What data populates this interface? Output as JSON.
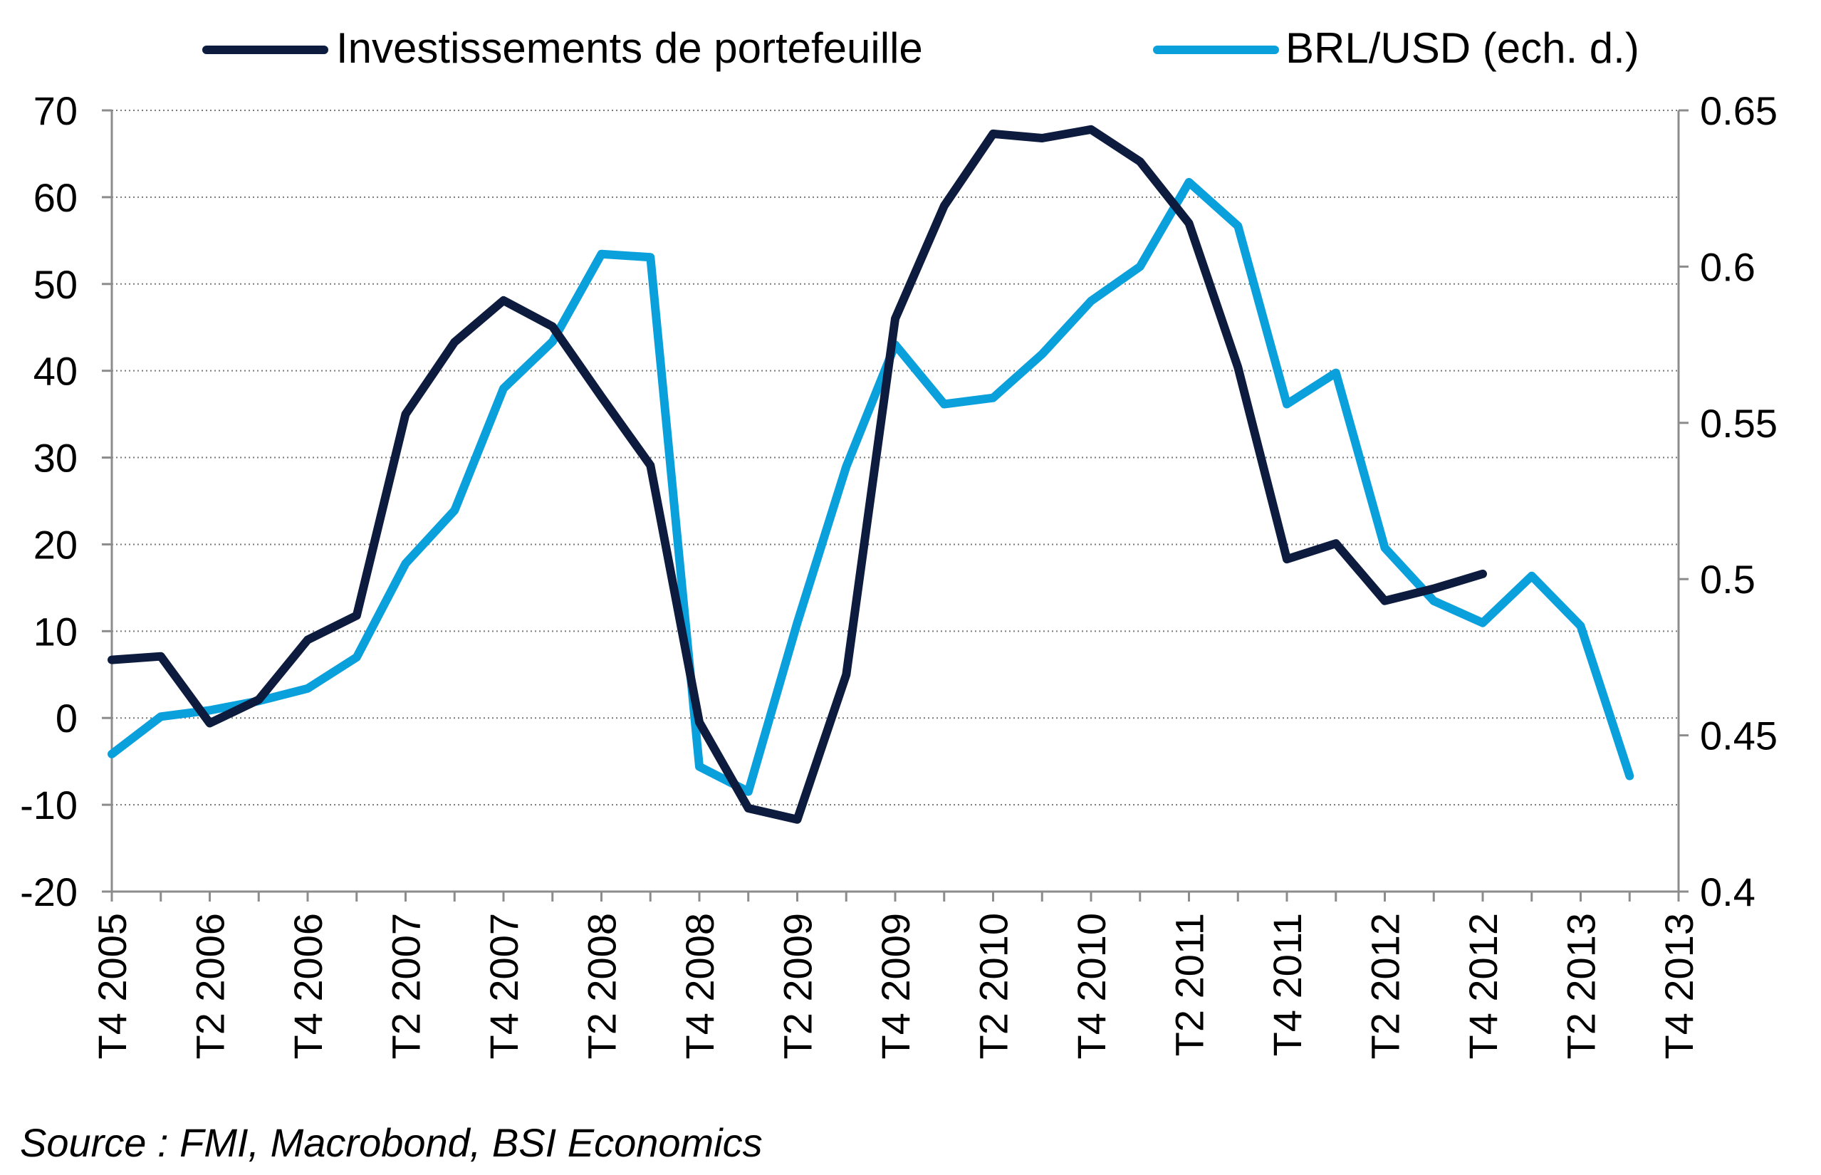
{
  "chart_data": {
    "type": "line",
    "title": "",
    "xlabel": "",
    "ylabel": "",
    "ylim_left": [
      -20,
      70
    ],
    "yticks_left": [
      -20,
      -10,
      0,
      10,
      20,
      30,
      40,
      50,
      60,
      70
    ],
    "ylim_right": [
      0.4,
      0.65
    ],
    "yticks_right": [
      "0.4",
      "0.45",
      "0.5",
      "0.55",
      "0.6",
      "0.65"
    ],
    "legend_position": "top",
    "grid": "horizontal dotted",
    "categories": [
      "T4 2005",
      "T1 2006",
      "T2 2006",
      "T3 2006",
      "T4 2006",
      "T1 2007",
      "T2 2007",
      "T3 2007",
      "T4 2007",
      "T1 2008",
      "T2 2008",
      "T3 2008",
      "T4 2008",
      "T1 2009",
      "T2 2009",
      "T3 2009",
      "T4 2009",
      "T1 2010",
      "T2 2010",
      "T3 2010",
      "T4 2010",
      "T1 2011",
      "T2 2011",
      "T3 2011",
      "T4 2011",
      "T1 2012",
      "T2 2012",
      "T3 2012",
      "T4 2012",
      "T1 2013",
      "T2 2013",
      "T3 2013",
      "T4 2013"
    ],
    "tick_labels": [
      "T4 2005",
      "T2 2006",
      "T4 2006",
      "T2 2007",
      "T4 2007",
      "T2 2008",
      "T4 2008",
      "T2 2009",
      "T4 2009",
      "T2 2010",
      "T4 2010",
      "T2 2011",
      "T4 2011",
      "T2 2012",
      "T4 2012",
      "T2 2013",
      "T4 2013"
    ],
    "series": [
      {
        "name": "Investissements de portefeuille",
        "axis": "left",
        "color": "#0c1b3e",
        "values": [
          6.7,
          7.1,
          -0.6,
          2.1,
          9.0,
          11.8,
          35.0,
          43.3,
          48.1,
          45.1,
          37.0,
          29.1,
          -0.5,
          -10.4,
          -11.7,
          5.0,
          46.0,
          59.0,
          67.3,
          66.8,
          67.8,
          64.1,
          57.0,
          40.4,
          18.3,
          20.1,
          13.5,
          14.9,
          16.6,
          null,
          null,
          null,
          null
        ]
      },
      {
        "name": "BRL/USD (ech. d.)",
        "axis": "right",
        "color": "#0aa0dc",
        "values": [
          0.444,
          0.456,
          0.458,
          0.461,
          0.465,
          0.475,
          0.505,
          0.522,
          0.561,
          0.576,
          0.604,
          0.603,
          0.44,
          0.432,
          0.486,
          0.536,
          0.575,
          0.556,
          0.558,
          0.572,
          0.589,
          0.6,
          0.627,
          0.613,
          0.556,
          0.566,
          0.51,
          0.493,
          0.486,
          0.501,
          0.485,
          0.437,
          null
        ]
      }
    ]
  },
  "source": "Source : FMI, Macrobond, BSI Economics"
}
